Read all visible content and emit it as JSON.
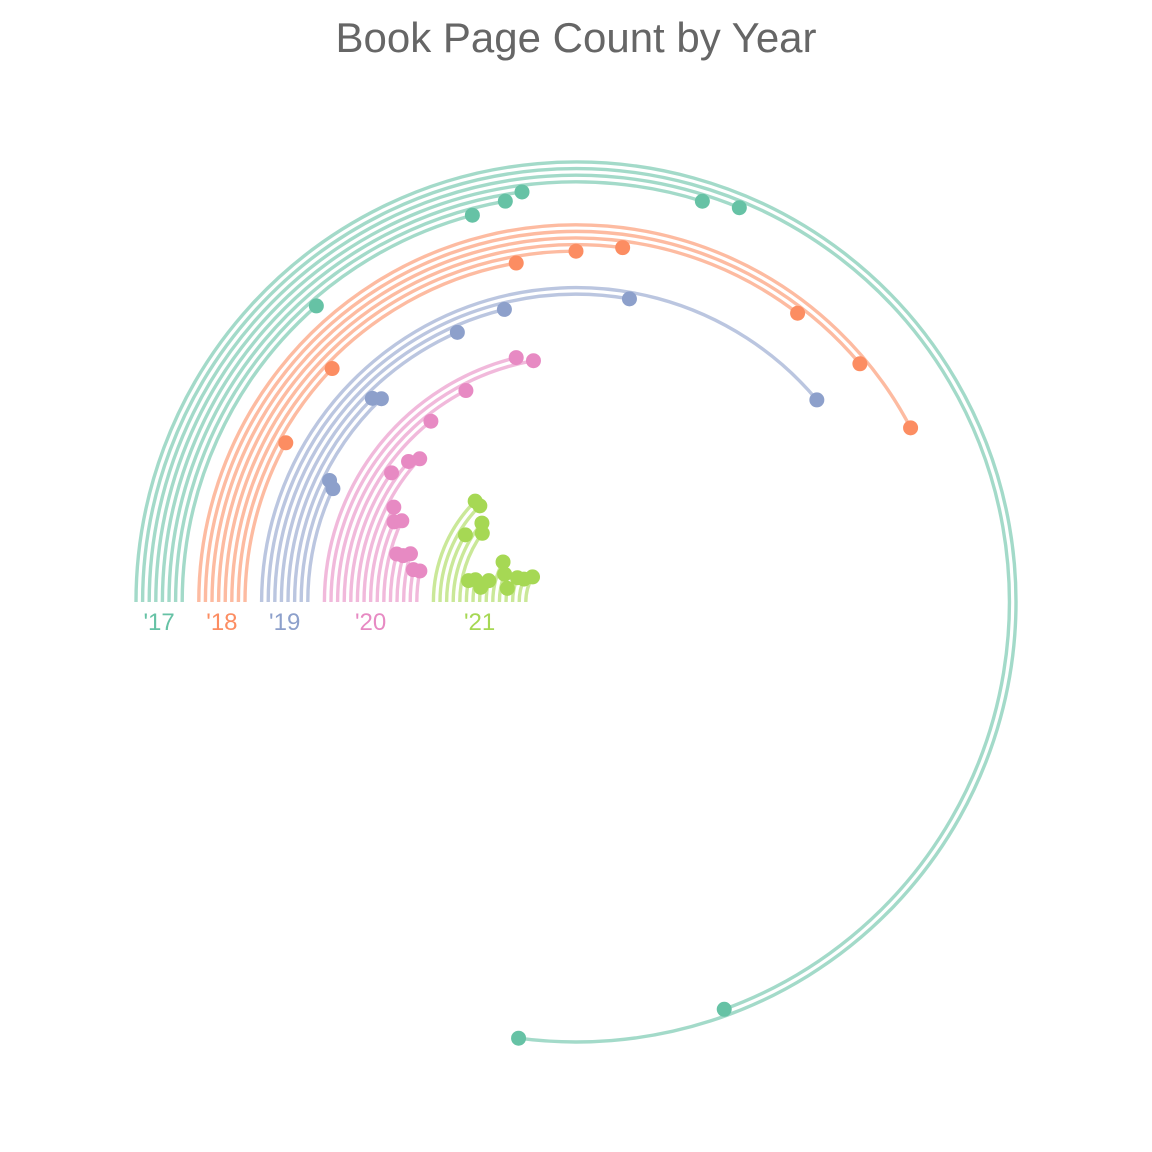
{
  "chart_data": {
    "type": "radial-arc",
    "title": "Book Page Count by Year",
    "unit_note": "",
    "colors": {
      "2017": "#66c2a5",
      "2018": "#fc8d62",
      "2019": "#8da0cb",
      "2020": "#e78ac3",
      "2021": "#a6d854"
    },
    "years": [
      {
        "label": "'17",
        "key": "2017",
        "values": [
          1110,
          1000,
          450,
          430,
          330,
          320,
          300,
          195
        ]
      },
      {
        "label": "'18",
        "key": "2018",
        "values": [
          610,
          560,
          510,
          390,
          360,
          320,
          175,
          115
        ]
      },
      {
        "label": "'19",
        "key": "2019",
        "values": [
          560,
          400,
          305,
          265,
          180,
          185,
          105,
          100
        ]
      },
      {
        "label": "'20",
        "key": "2020",
        "values": [
          305,
          320,
          250,
          205,
          140,
          160,
          170,
          110,
          95,
          100,
          60,
          60,
          65,
          45,
          45
        ]
      },
      {
        "label": "'21",
        "key": "2021",
        "values": [
          180,
          180,
          125,
          160,
          145,
          45,
          50,
          35,
          55,
          115,
          85,
          45,
          90,
          95,
          120
        ]
      }
    ]
  }
}
